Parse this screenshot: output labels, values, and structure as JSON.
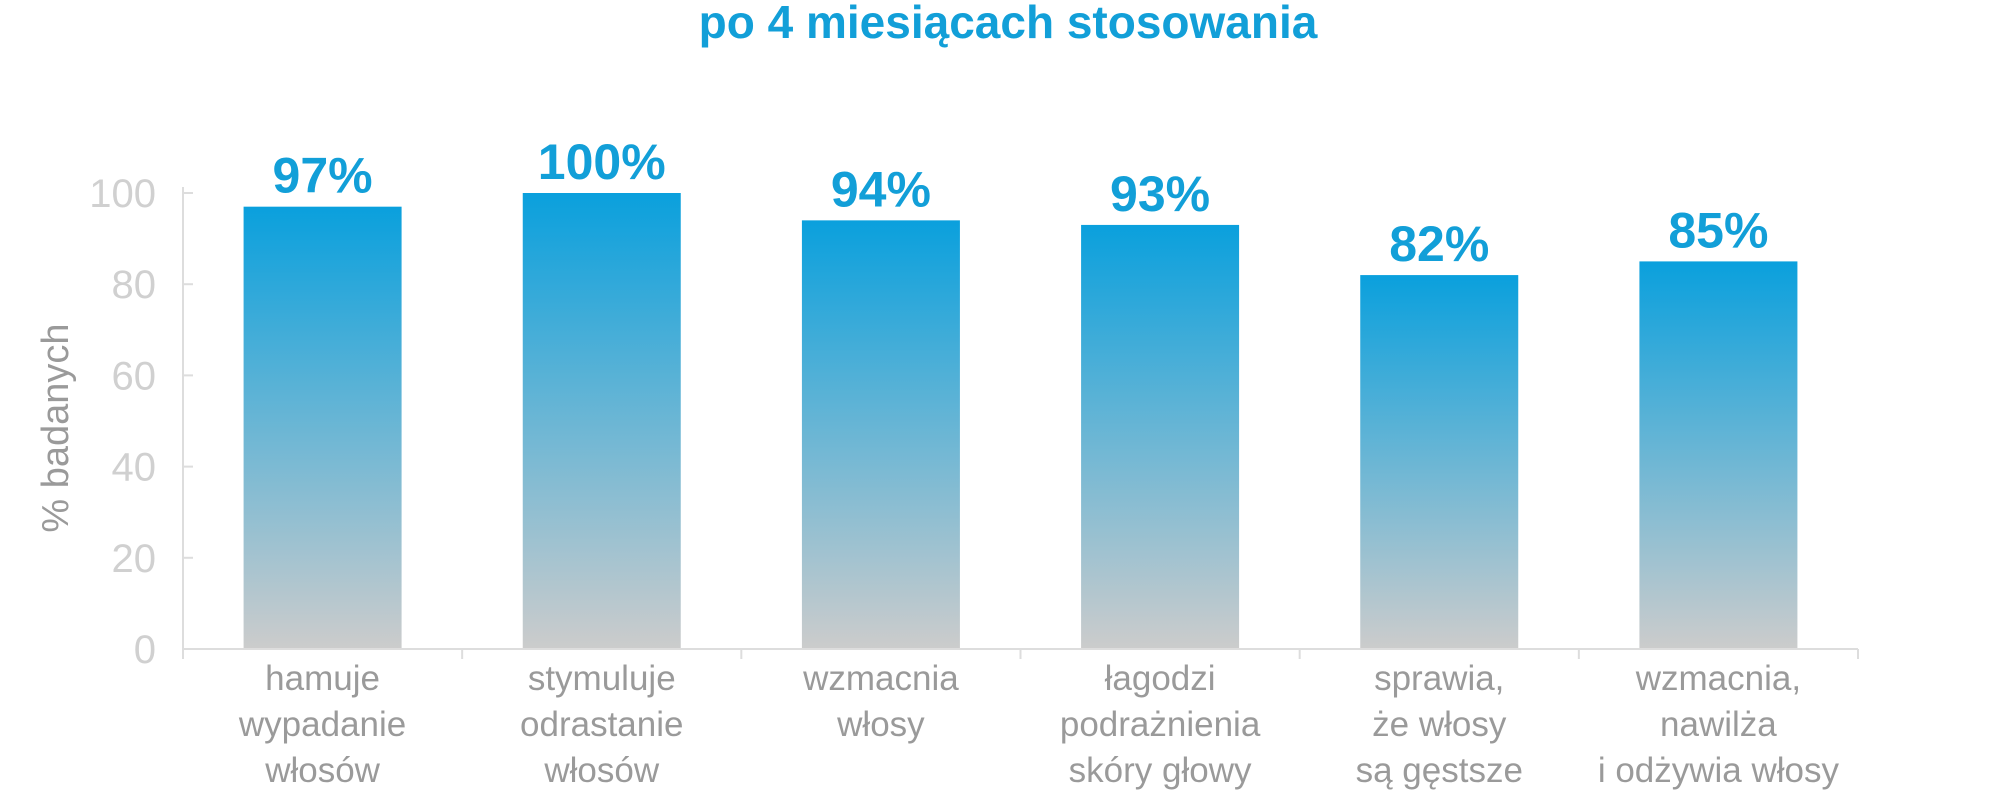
{
  "colors": {
    "accent": "#129fd8",
    "bar_top": "#0aa0dd",
    "bar_bottom": "#cccccc",
    "axis": "#dddddd",
    "tick_text": "#d0d0d0",
    "label_text": "#9a9a9a"
  },
  "chart_data": {
    "type": "bar",
    "title": "po 4 miesiącach stosowania",
    "xlabel": "",
    "ylabel": "% badanych",
    "ylim": [
      0,
      100
    ],
    "yticks": [
      0,
      20,
      40,
      60,
      80,
      100
    ],
    "grid": false,
    "categories": [
      [
        "hamuje",
        "wypadanie",
        "włosów"
      ],
      [
        "stymuluje",
        "odrastanie",
        "włosów"
      ],
      [
        "wzmacnia",
        "włosy"
      ],
      [
        "łagodzi",
        "podrażnienia",
        "skóry głowy"
      ],
      [
        "sprawia,",
        "że włosy",
        "są gęstsze"
      ],
      [
        "wzmacnia,",
        "nawilża",
        "i odżywia włosy"
      ]
    ],
    "values": [
      97,
      100,
      94,
      93,
      82,
      85
    ],
    "value_labels": [
      "97%",
      "100%",
      "94%",
      "93%",
      "82%",
      "85%"
    ]
  }
}
